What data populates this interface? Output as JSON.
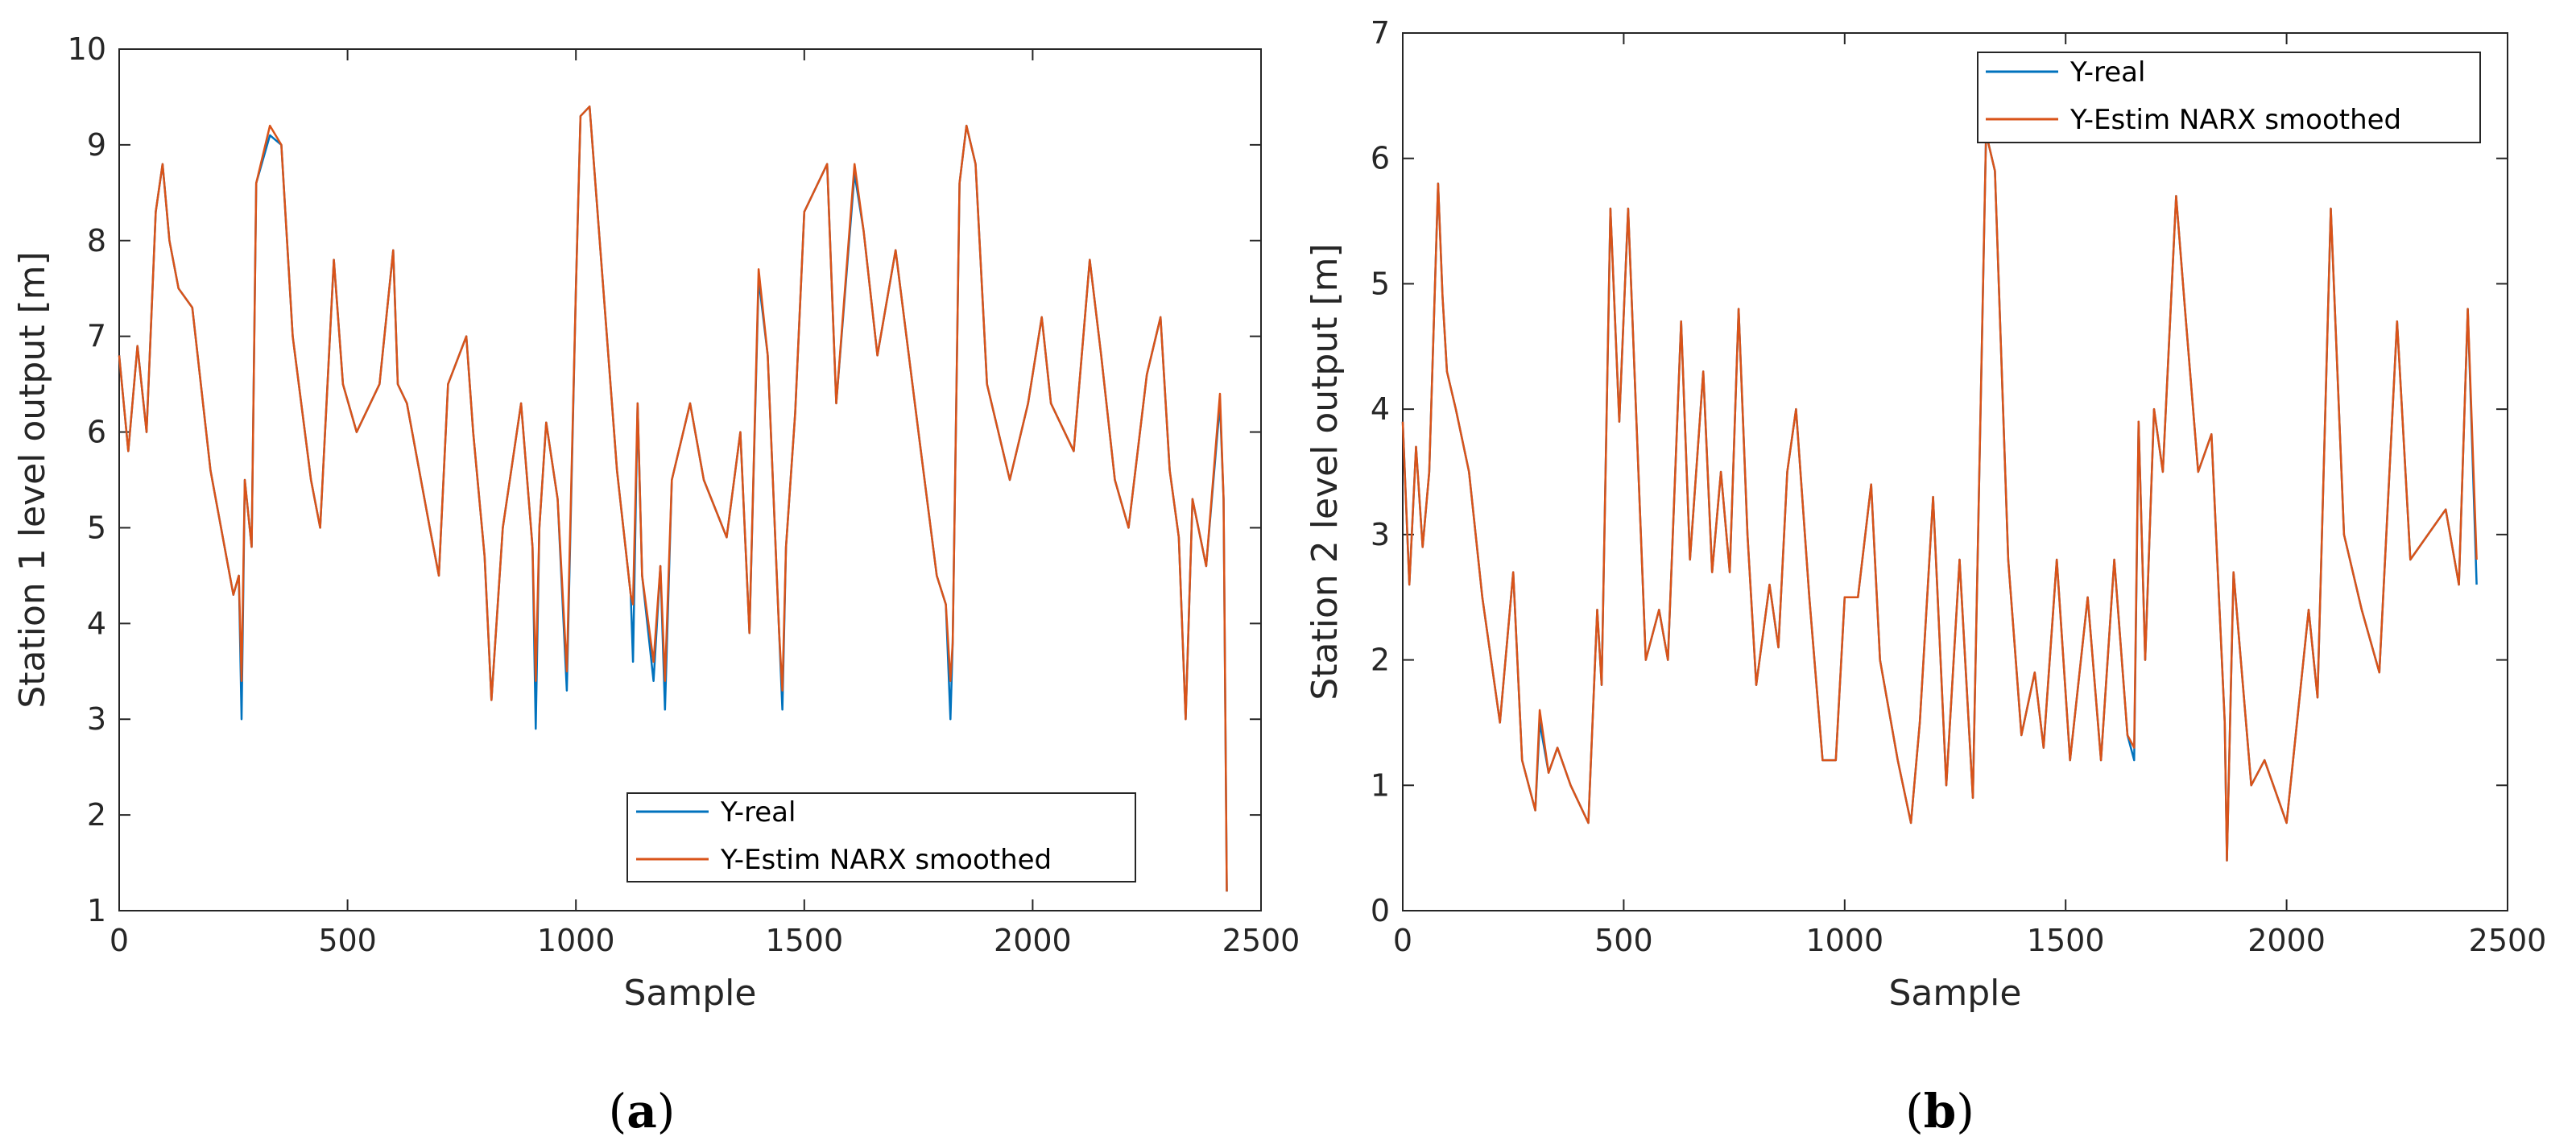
{
  "colors": {
    "real": "#0072BD",
    "estim": "#D95319",
    "axis": "#262626"
  },
  "chart_data": [
    {
      "type": "line",
      "panel": "a",
      "caption": "(a)",
      "xlabel": "Sample",
      "ylabel": "Station 1 level output  [m]",
      "xlim": [
        0,
        2500
      ],
      "ylim": [
        1,
        10
      ],
      "xticks": [
        0,
        500,
        1000,
        1500,
        2000,
        2500
      ],
      "yticks": [
        1,
        2,
        3,
        4,
        5,
        6,
        7,
        8,
        9,
        10
      ],
      "legend": {
        "placement": "bottom-right",
        "entries": [
          "Y-real",
          "Y-Estim NARX smoothed"
        ]
      },
      "series": [
        {
          "name": "Y-real",
          "x": [
            0,
            20,
            40,
            60,
            80,
            95,
            110,
            130,
            160,
            200,
            250,
            262,
            268,
            275,
            290,
            300,
            330,
            355,
            380,
            420,
            440,
            470,
            490,
            520,
            570,
            600,
            610,
            630,
            680,
            700,
            720,
            760,
            775,
            800,
            815,
            840,
            880,
            905,
            912,
            920,
            935,
            960,
            980,
            1000,
            1010,
            1030,
            1060,
            1090,
            1120,
            1125,
            1135,
            1145,
            1170,
            1185,
            1195,
            1210,
            1250,
            1280,
            1330,
            1360,
            1380,
            1400,
            1420,
            1445,
            1452,
            1460,
            1480,
            1500,
            1550,
            1570,
            1610,
            1630,
            1660,
            1700,
            1750,
            1790,
            1810,
            1820,
            1825,
            1840,
            1855,
            1875,
            1900,
            1950,
            1990,
            2020,
            2040,
            2090,
            2125,
            2150,
            2180,
            2210,
            2250,
            2280,
            2300,
            2320,
            2335,
            2350,
            2380,
            2410,
            2418,
            2425
          ],
          "y": [
            6.8,
            5.8,
            6.9,
            6.0,
            8.3,
            8.8,
            8.0,
            7.5,
            7.3,
            5.6,
            4.3,
            4.5,
            3.0,
            5.5,
            4.8,
            8.6,
            9.1,
            9.0,
            7.0,
            5.5,
            5.0,
            7.8,
            6.5,
            6.0,
            6.5,
            7.9,
            6.5,
            6.3,
            5.0,
            4.5,
            6.5,
            7.0,
            6.0,
            4.7,
            3.2,
            5.0,
            6.3,
            4.8,
            2.9,
            5.0,
            6.1,
            5.3,
            3.3,
            7.5,
            9.3,
            9.4,
            7.5,
            5.6,
            4.3,
            3.6,
            6.3,
            4.5,
            3.4,
            4.6,
            3.1,
            5.5,
            6.3,
            5.5,
            4.9,
            6.0,
            3.9,
            7.6,
            6.8,
            3.9,
            3.1,
            4.8,
            6.2,
            8.3,
            8.8,
            6.3,
            8.7,
            8.1,
            6.8,
            7.9,
            6.0,
            4.5,
            4.2,
            3.0,
            3.8,
            8.6,
            9.2,
            8.8,
            6.5,
            5.5,
            6.3,
            7.2,
            6.3,
            5.8,
            7.8,
            6.8,
            5.5,
            5.0,
            6.6,
            7.2,
            5.6,
            4.9,
            3.0,
            5.3,
            4.6,
            6.3,
            5.3,
            1.2
          ]
        },
        {
          "name": "Y-Estim NARX smoothed",
          "x": [
            0,
            20,
            40,
            60,
            80,
            95,
            110,
            130,
            160,
            200,
            250,
            262,
            268,
            275,
            290,
            300,
            330,
            355,
            380,
            420,
            440,
            470,
            490,
            520,
            570,
            600,
            610,
            630,
            680,
            700,
            720,
            760,
            775,
            800,
            815,
            840,
            880,
            905,
            912,
            920,
            935,
            960,
            980,
            1000,
            1010,
            1030,
            1060,
            1090,
            1120,
            1125,
            1135,
            1145,
            1170,
            1185,
            1195,
            1210,
            1250,
            1280,
            1330,
            1360,
            1380,
            1400,
            1420,
            1445,
            1452,
            1460,
            1480,
            1500,
            1550,
            1570,
            1610,
            1630,
            1660,
            1700,
            1750,
            1790,
            1810,
            1820,
            1825,
            1840,
            1855,
            1875,
            1900,
            1950,
            1990,
            2020,
            2040,
            2090,
            2125,
            2150,
            2180,
            2210,
            2250,
            2280,
            2300,
            2320,
            2335,
            2350,
            2380,
            2410,
            2418,
            2425
          ],
          "y": [
            6.8,
            5.8,
            6.9,
            6.0,
            8.3,
            8.8,
            8.0,
            7.5,
            7.3,
            5.6,
            4.3,
            4.5,
            3.4,
            5.5,
            4.8,
            8.6,
            9.2,
            9.0,
            7.0,
            5.5,
            5.0,
            7.8,
            6.5,
            6.0,
            6.5,
            7.9,
            6.5,
            6.3,
            5.0,
            4.5,
            6.5,
            7.0,
            6.0,
            4.7,
            3.2,
            5.0,
            6.3,
            4.8,
            3.4,
            5.0,
            6.1,
            5.3,
            3.5,
            7.5,
            9.3,
            9.4,
            7.5,
            5.6,
            4.3,
            4.2,
            6.3,
            4.5,
            3.6,
            4.6,
            3.4,
            5.5,
            6.3,
            5.5,
            4.9,
            6.0,
            3.9,
            7.7,
            6.8,
            3.9,
            3.3,
            4.8,
            6.2,
            8.3,
            8.8,
            6.3,
            8.8,
            8.1,
            6.8,
            7.9,
            6.0,
            4.5,
            4.2,
            3.4,
            3.8,
            8.6,
            9.2,
            8.8,
            6.5,
            5.5,
            6.3,
            7.2,
            6.3,
            5.8,
            7.8,
            6.8,
            5.5,
            5.0,
            6.6,
            7.2,
            5.6,
            4.9,
            3.0,
            5.3,
            4.6,
            6.4,
            5.3,
            1.2
          ]
        }
      ]
    },
    {
      "type": "line",
      "panel": "b",
      "caption": "(b)",
      "xlabel": "Sample",
      "ylabel": "Station 2 level output [m]",
      "xlim": [
        0,
        2500
      ],
      "ylim": [
        0,
        7
      ],
      "xticks": [
        0,
        500,
        1000,
        1500,
        2000,
        2500
      ],
      "yticks": [
        0,
        1,
        2,
        3,
        4,
        5,
        6,
        7
      ],
      "legend": {
        "placement": "top-right",
        "entries": [
          "Y-real",
          "Y-Estim NARX smoothed"
        ]
      },
      "series": [
        {
          "name": "Y-real",
          "x": [
            0,
            15,
            30,
            45,
            60,
            80,
            90,
            100,
            120,
            150,
            180,
            220,
            250,
            270,
            300,
            310,
            330,
            350,
            380,
            420,
            440,
            450,
            470,
            490,
            510,
            550,
            580,
            600,
            630,
            650,
            680,
            700,
            720,
            740,
            760,
            780,
            800,
            830,
            850,
            870,
            890,
            920,
            950,
            980,
            1000,
            1030,
            1060,
            1080,
            1120,
            1150,
            1170,
            1200,
            1230,
            1260,
            1290,
            1320,
            1340,
            1370,
            1400,
            1430,
            1450,
            1480,
            1510,
            1550,
            1580,
            1610,
            1640,
            1655,
            1665,
            1680,
            1700,
            1720,
            1750,
            1770,
            1800,
            1830,
            1860,
            1865,
            1880,
            1920,
            1950,
            2000,
            2050,
            2070,
            2100,
            2130,
            2170,
            2210,
            2250,
            2280,
            2320,
            2360,
            2390,
            2410,
            2430
          ],
          "y": [
            3.9,
            2.6,
            3.7,
            2.9,
            3.5,
            5.8,
            4.9,
            4.3,
            4.0,
            3.5,
            2.5,
            1.5,
            2.7,
            1.2,
            0.8,
            1.5,
            1.1,
            1.3,
            1.0,
            0.7,
            2.4,
            1.8,
            5.6,
            3.9,
            5.6,
            2.0,
            2.4,
            2.0,
            4.7,
            2.8,
            4.3,
            2.7,
            3.5,
            2.7,
            4.8,
            3.0,
            1.8,
            2.6,
            2.1,
            3.5,
            4.0,
            2.5,
            1.2,
            1.2,
            2.5,
            2.5,
            3.4,
            2.0,
            1.2,
            0.7,
            1.5,
            3.3,
            1.0,
            2.8,
            0.9,
            6.2,
            5.9,
            2.8,
            1.4,
            1.9,
            1.3,
            2.8,
            1.2,
            2.5,
            1.2,
            2.8,
            1.4,
            1.2,
            3.9,
            2.0,
            4.0,
            3.5,
            5.7,
            4.8,
            3.5,
            3.8,
            1.5,
            0.4,
            2.7,
            1.0,
            1.2,
            0.7,
            2.4,
            1.7,
            5.6,
            3.0,
            2.4,
            1.9,
            4.7,
            2.8,
            3.0,
            3.2,
            2.6,
            4.8,
            2.6
          ]
        },
        {
          "name": "Y-Estim NARX smoothed",
          "x": [
            0,
            15,
            30,
            45,
            60,
            80,
            90,
            100,
            120,
            150,
            180,
            220,
            250,
            270,
            300,
            310,
            330,
            350,
            380,
            420,
            440,
            450,
            470,
            490,
            510,
            550,
            580,
            600,
            630,
            650,
            680,
            700,
            720,
            740,
            760,
            780,
            800,
            830,
            850,
            870,
            890,
            920,
            950,
            980,
            1000,
            1030,
            1060,
            1080,
            1120,
            1150,
            1170,
            1200,
            1230,
            1260,
            1290,
            1320,
            1340,
            1370,
            1400,
            1430,
            1450,
            1480,
            1510,
            1550,
            1580,
            1610,
            1640,
            1655,
            1665,
            1680,
            1700,
            1720,
            1750,
            1770,
            1800,
            1830,
            1860,
            1865,
            1880,
            1920,
            1950,
            2000,
            2050,
            2070,
            2100,
            2130,
            2170,
            2210,
            2250,
            2280,
            2320,
            2360,
            2390,
            2410,
            2430
          ],
          "y": [
            3.9,
            2.6,
            3.7,
            2.9,
            3.5,
            5.8,
            4.9,
            4.3,
            4.0,
            3.5,
            2.5,
            1.5,
            2.7,
            1.2,
            0.8,
            1.6,
            1.1,
            1.3,
            1.0,
            0.7,
            2.4,
            1.8,
            5.6,
            3.9,
            5.6,
            2.0,
            2.4,
            2.0,
            4.7,
            2.8,
            4.3,
            2.7,
            3.5,
            2.7,
            4.8,
            3.0,
            1.8,
            2.6,
            2.1,
            3.5,
            4.0,
            2.5,
            1.2,
            1.2,
            2.5,
            2.5,
            3.4,
            2.0,
            1.2,
            0.7,
            1.5,
            3.3,
            1.0,
            2.8,
            0.9,
            6.2,
            5.9,
            2.8,
            1.4,
            1.9,
            1.3,
            2.8,
            1.2,
            2.5,
            1.2,
            2.8,
            1.4,
            1.3,
            3.9,
            2.0,
            4.0,
            3.5,
            5.7,
            4.8,
            3.5,
            3.8,
            1.5,
            0.4,
            2.7,
            1.0,
            1.2,
            0.7,
            2.4,
            1.7,
            5.6,
            3.0,
            2.4,
            1.9,
            4.7,
            2.8,
            3.0,
            3.2,
            2.6,
            4.8,
            2.8
          ]
        }
      ]
    }
  ]
}
